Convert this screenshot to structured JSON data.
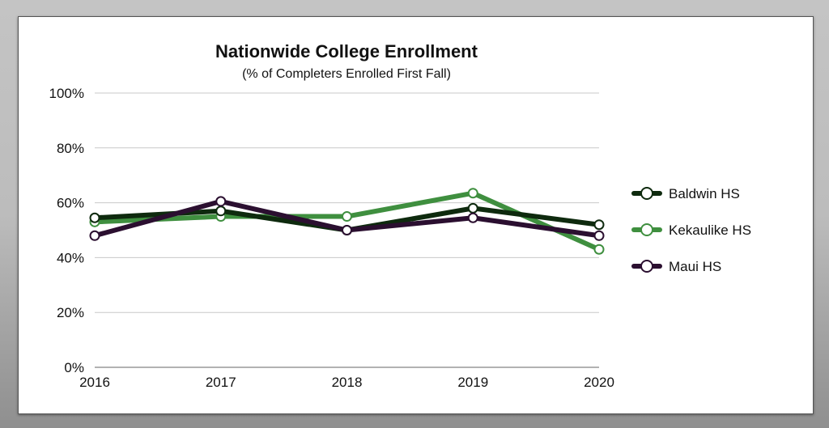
{
  "chart_data": {
    "type": "line",
    "title": "Nationwide College Enrollment",
    "subtitle": "(% of Completers Enrolled First Fall)",
    "xlabel": "",
    "ylabel": "",
    "x": [
      "2016",
      "2017",
      "2018",
      "2019",
      "2020"
    ],
    "y_ticks": [
      "0%",
      "20%",
      "40%",
      "60%",
      "80%",
      "100%"
    ],
    "ylim": [
      0,
      100
    ],
    "grid": true,
    "legend_position": "right",
    "series": [
      {
        "name": "Kekaulike HS",
        "color": "#3f8f3f",
        "values": [
          53,
          55,
          55,
          63.5,
          43
        ]
      },
      {
        "name": "Baldwin HS",
        "color": "#0e2a0e",
        "values": [
          54.5,
          57,
          50,
          58,
          52
        ]
      },
      {
        "name": "Maui HS",
        "color": "#2b0f30",
        "values": [
          48,
          60.5,
          50,
          54.5,
          48
        ]
      }
    ],
    "legend_order": [
      "Baldwin HS",
      "Kekaulike HS",
      "Maui HS"
    ]
  }
}
